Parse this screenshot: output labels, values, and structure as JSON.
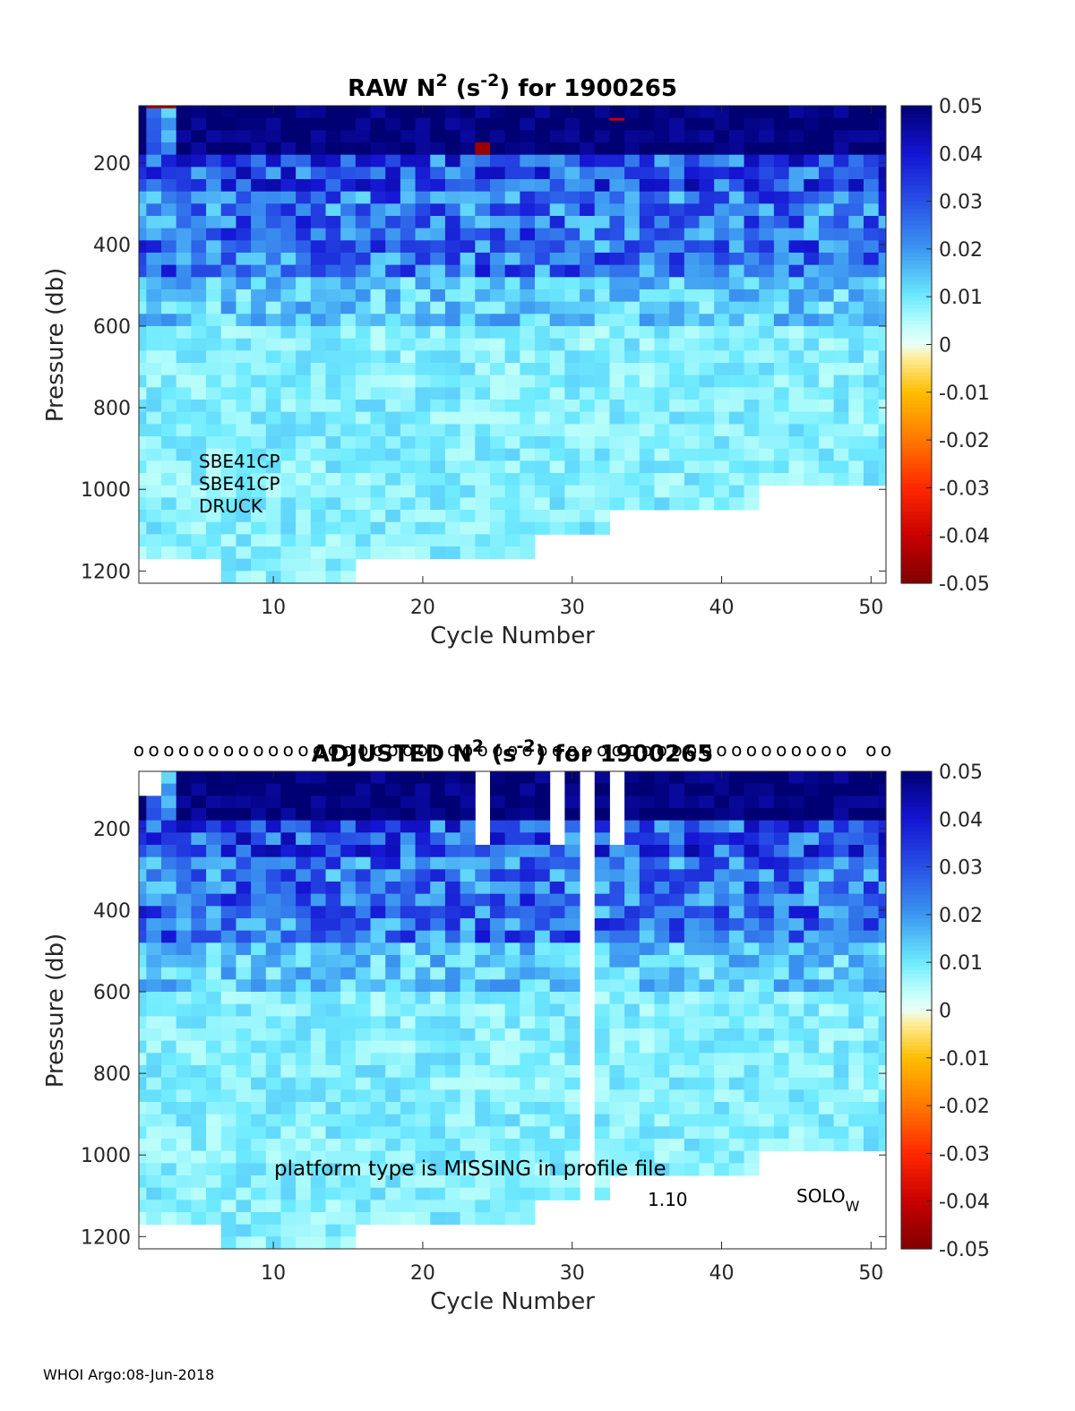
{
  "chart_data": [
    {
      "type": "heatmap",
      "title": "RAW N² (s⁻²) for 1900265",
      "title_parts": {
        "pre": "RAW N",
        "sup1": "2",
        "mid": " (s",
        "sup2": "-2",
        "post": ") for 1900265"
      },
      "xlabel": "Cycle Number",
      "ylabel": "Pressure (db)",
      "xlim": [
        1,
        51
      ],
      "ylim": [
        1230,
        60
      ],
      "xticks": [
        10,
        20,
        30,
        40,
        50
      ],
      "yticks": [
        200,
        400,
        600,
        800,
        1000,
        1200
      ],
      "colorbar": {
        "min": -0.05,
        "max": 0.05,
        "ticks": [
          "0.05",
          "0.04",
          "0.03",
          "0.02",
          "0.01",
          "0",
          "-0.01",
          "-0.02",
          "-0.03",
          "-0.04",
          "-0.05"
        ]
      },
      "annotations": [
        "SBE41CP",
        "SBE41CP",
        "DRUCK"
      ],
      "missing_cycles": []
    },
    {
      "type": "heatmap",
      "title": "ADJUSTED N² (s⁻²) for 1900265",
      "title_parts": {
        "pre": "ADJUSTED N",
        "sup1": "2",
        "mid": " (s",
        "sup2": "-2",
        "post": ") for 1900265"
      },
      "xlabel": "Cycle Number",
      "ylabel": "Pressure (db)",
      "xlim": [
        1,
        51
      ],
      "ylim": [
        1230,
        60
      ],
      "xticks": [
        10,
        20,
        30,
        40,
        50
      ],
      "yticks": [
        200,
        400,
        600,
        800,
        1000,
        1200
      ],
      "colorbar": {
        "min": -0.05,
        "max": 0.05,
        "ticks": [
          "0.05",
          "0.04",
          "0.03",
          "0.02",
          "0.01",
          "0",
          "-0.01",
          "-0.02",
          "-0.03",
          "-0.04",
          "-0.05"
        ]
      },
      "annotations": [
        "platform type is MISSING in profile file",
        "1.10",
        "SOLO",
        "W"
      ],
      "qc_marker": "o",
      "qc_marker_cycles": [
        1,
        2,
        3,
        4,
        5,
        6,
        7,
        8,
        9,
        10,
        11,
        12,
        13,
        14,
        15,
        16,
        17,
        18,
        19,
        20,
        21,
        22,
        23,
        24,
        25,
        26,
        27,
        28,
        29,
        30,
        31,
        32,
        33,
        34,
        35,
        36,
        37,
        38,
        39,
        40,
        41,
        42,
        43,
        44,
        45,
        46,
        47,
        48,
        50,
        51
      ],
      "missing_cycles": [
        31
      ],
      "shallow_gap_cycles": [
        24,
        29,
        33
      ]
    }
  ],
  "footer": "WHOI Argo:08-Jun-2018"
}
